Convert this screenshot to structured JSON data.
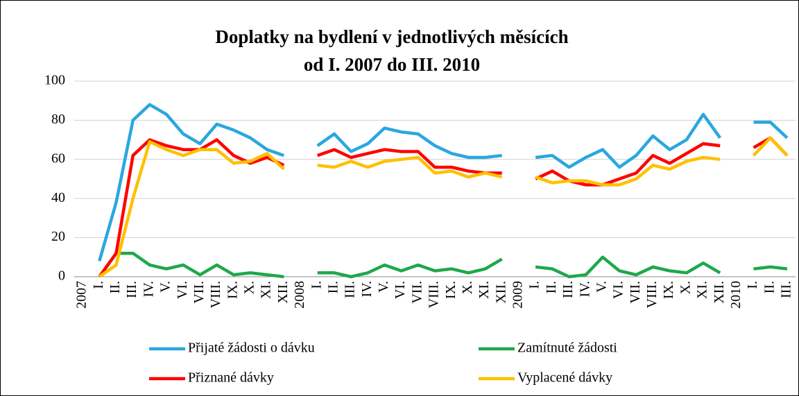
{
  "chart_data": {
    "type": "line",
    "title": [
      "Doplatky na bydlení v jednotlivých měsících",
      "od I. 2007 do III. 2010"
    ],
    "categories": [
      "2007",
      "I.",
      "II.",
      "III.",
      "IV.",
      "V.",
      "VI.",
      "VII.",
      "VIII.",
      "IX.",
      "X.",
      "XI.",
      "XII.",
      "2008",
      "I.",
      "II.",
      "III.",
      "IV.",
      "V.",
      "VI.",
      "VII.",
      "VIII.",
      "IX.",
      "X.",
      "XI.",
      "XII.",
      "2009",
      "I.",
      "II.",
      "III.",
      "IV.",
      "V.",
      "VI.",
      "VII.",
      "VIII.",
      "IX.",
      "X.",
      "XI.",
      "XII.",
      "2010",
      "I.",
      "II.",
      "III."
    ],
    "series": [
      {
        "name": "Přijaté žádosti o dávku",
        "color": "#2aa7df",
        "values": [
          null,
          8,
          38,
          80,
          88,
          83,
          73,
          68,
          78,
          75,
          71,
          65,
          62,
          null,
          67,
          73,
          64,
          68,
          76,
          74,
          73,
          67,
          63,
          61,
          61,
          62,
          null,
          61,
          62,
          56,
          61,
          65,
          56,
          62,
          72,
          65,
          70,
          83,
          71,
          null,
          79,
          79,
          71
        ]
      },
      {
        "name": "Zamítnuté žádosti",
        "color": "#1fa84a",
        "values": [
          null,
          0,
          12,
          12,
          6,
          4,
          6,
          1,
          6,
          1,
          2,
          1,
          0,
          null,
          2,
          2,
          0,
          2,
          6,
          3,
          6,
          3,
          4,
          2,
          4,
          9,
          null,
          5,
          4,
          0,
          1,
          10,
          3,
          1,
          5,
          3,
          2,
          7,
          2,
          null,
          4,
          5,
          4
        ]
      },
      {
        "name": "Přiznané dávky",
        "color": "#ff0000",
        "values": [
          null,
          0,
          12,
          62,
          70,
          67,
          65,
          65,
          70,
          62,
          58,
          61,
          57,
          null,
          62,
          65,
          61,
          63,
          65,
          64,
          64,
          56,
          56,
          54,
          53,
          53,
          null,
          50,
          54,
          49,
          47,
          47,
          50,
          53,
          62,
          58,
          63,
          68,
          67,
          null,
          66,
          71,
          62
        ]
      },
      {
        "name": "Vyplacené dávky",
        "color": "#ffc000",
        "values": [
          null,
          0,
          6,
          40,
          69,
          65,
          62,
          65,
          65,
          58,
          59,
          63,
          55,
          null,
          57,
          56,
          59,
          56,
          59,
          60,
          61,
          53,
          54,
          51,
          53,
          51,
          null,
          51,
          48,
          49,
          49,
          47,
          47,
          50,
          57,
          55,
          59,
          61,
          60,
          null,
          62,
          71,
          62
        ]
      }
    ],
    "ylim": [
      0,
      100
    ],
    "yticks": [
      0,
      20,
      40,
      60,
      80,
      100
    ],
    "grid": true
  }
}
